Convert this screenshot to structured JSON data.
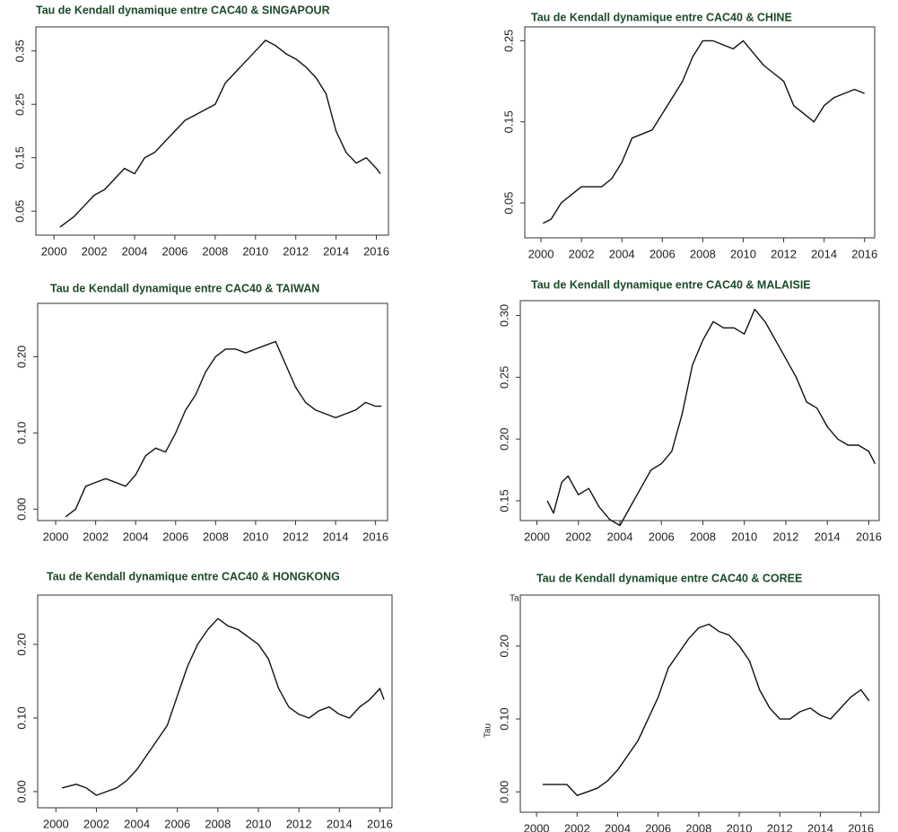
{
  "chart_data": [
    {
      "type": "line",
      "title": "Tau de Kendall dynamique entre CAC40 & SINGAPOUR",
      "color": "#111111",
      "x": [
        2000.3,
        2001,
        2001.5,
        2002,
        2002.5,
        2003,
        2003.5,
        2004,
        2004.5,
        2005,
        2005.5,
        2006,
        2006.5,
        2007,
        2007.5,
        2008,
        2008.5,
        2009,
        2009.5,
        2010,
        2010.5,
        2011,
        2011.5,
        2012,
        2012.5,
        2013,
        2013.5,
        2014,
        2014.5,
        2015,
        2015.5,
        2016,
        2016.2
      ],
      "values": [
        0.02,
        0.04,
        0.06,
        0.08,
        0.09,
        0.11,
        0.13,
        0.12,
        0.15,
        0.16,
        0.18,
        0.2,
        0.22,
        0.23,
        0.24,
        0.25,
        0.29,
        0.31,
        0.33,
        0.35,
        0.37,
        0.36,
        0.345,
        0.335,
        0.32,
        0.3,
        0.27,
        0.2,
        0.16,
        0.14,
        0.15,
        0.13,
        0.12
      ],
      "xlim": [
        1999.1,
        2016.6
      ],
      "xticks": [
        2000,
        2002,
        2004,
        2006,
        2008,
        2010,
        2012,
        2014,
        2016
      ],
      "ylim": [
        0.005,
        0.395
      ],
      "yticks": [
        0.05,
        0.15,
        0.25,
        0.35
      ]
    },
    {
      "type": "line",
      "title": "Tau de Kendall dynamique entre CAC40 & CHINE",
      "color": "#111111",
      "x": [
        2000.1,
        2000.5,
        2001,
        2001.5,
        2002,
        2003,
        2003.5,
        2004,
        2004.5,
        2005,
        2005.5,
        2006,
        2006.5,
        2007,
        2007.5,
        2008,
        2008.5,
        2009,
        2009.5,
        2010,
        2010.5,
        2011,
        2011.5,
        2012,
        2012.5,
        2013,
        2013.5,
        2014,
        2014.5,
        2015,
        2015.5,
        2016
      ],
      "values": [
        0.025,
        0.03,
        0.05,
        0.06,
        0.07,
        0.07,
        0.08,
        0.1,
        0.13,
        0.135,
        0.14,
        0.16,
        0.18,
        0.2,
        0.23,
        0.25,
        0.25,
        0.245,
        0.24,
        0.25,
        0.235,
        0.22,
        0.21,
        0.2,
        0.17,
        0.16,
        0.15,
        0.17,
        0.18,
        0.185,
        0.19,
        0.185
      ],
      "xlim": [
        1999.2,
        2016.5
      ],
      "xticks": [
        2000,
        2002,
        2004,
        2006,
        2008,
        2010,
        2012,
        2014,
        2016
      ],
      "ylim": [
        0.007,
        0.267
      ],
      "yticks": [
        0.05,
        0.15,
        0.25
      ]
    },
    {
      "type": "line",
      "title": "Tau de Kendall dynamique entre CAC40 & TAIWAN",
      "color": "#111111",
      "x": [
        2000.5,
        2001,
        2001.5,
        2002,
        2002.5,
        2003,
        2003.5,
        2004,
        2004.5,
        2005,
        2005.5,
        2006,
        2006.5,
        2007,
        2007.5,
        2008,
        2008.5,
        2009,
        2009.5,
        2010,
        2010.5,
        2011,
        2011.5,
        2012,
        2012.5,
        2013,
        2013.5,
        2014,
        2014.5,
        2015,
        2015.5,
        2016,
        2016.3
      ],
      "values": [
        -0.01,
        0.0,
        0.03,
        0.035,
        0.04,
        0.035,
        0.03,
        0.045,
        0.07,
        0.08,
        0.075,
        0.1,
        0.13,
        0.15,
        0.18,
        0.2,
        0.21,
        0.21,
        0.205,
        0.21,
        0.215,
        0.22,
        0.19,
        0.16,
        0.14,
        0.13,
        0.125,
        0.12,
        0.125,
        0.13,
        0.14,
        0.135,
        0.135
      ],
      "xlim": [
        1999.1,
        2016.6
      ],
      "xticks": [
        2000,
        2002,
        2004,
        2006,
        2008,
        2010,
        2012,
        2014,
        2016
      ],
      "ylim": [
        -0.015,
        0.27
      ],
      "yticks": [
        {
          "value": 0,
          "label": "0.00"
        },
        {
          "value": 0.1,
          "label": "0.10"
        },
        {
          "value": 0.2,
          "label": "0.20"
        }
      ]
    },
    {
      "type": "line",
      "title": "Tau de Kendall dynamique entre CAC40 & MALAISIE",
      "color": "#111111",
      "x": [
        2000.5,
        2000.8,
        2001.2,
        2001.5,
        2002,
        2002.5,
        2003,
        2003.5,
        2004,
        2004.5,
        2005,
        2005.5,
        2006,
        2006.5,
        2007,
        2007.5,
        2008,
        2008.5,
        2009,
        2009.5,
        2010,
        2010.5,
        2011,
        2011.5,
        2012,
        2012.5,
        2013,
        2013.5,
        2014,
        2014.5,
        2015,
        2015.5,
        2016,
        2016.3
      ],
      "values": [
        0.15,
        0.14,
        0.165,
        0.17,
        0.155,
        0.16,
        0.145,
        0.135,
        0.13,
        0.145,
        0.16,
        0.175,
        0.18,
        0.19,
        0.22,
        0.26,
        0.28,
        0.295,
        0.29,
        0.29,
        0.285,
        0.305,
        0.295,
        0.28,
        0.265,
        0.25,
        0.23,
        0.225,
        0.21,
        0.2,
        0.195,
        0.195,
        0.19,
        0.18
      ],
      "xlim": [
        1999.2,
        2016.5
      ],
      "xticks": [
        2000,
        2002,
        2004,
        2006,
        2008,
        2010,
        2012,
        2014,
        2016
      ],
      "ylim": [
        0.134,
        0.312
      ],
      "yticks": [
        0.15,
        {
          "value": 0.2,
          "label": "0.20"
        },
        0.25,
        {
          "value": 0.3,
          "label": "0.30"
        }
      ]
    },
    {
      "type": "line",
      "title": "Tau de Kendall dynamique entre CAC40 & HONGKONG",
      "color": "#111111",
      "x": [
        2000.3,
        2001,
        2001.5,
        2002,
        2002.5,
        2003,
        2003.5,
        2004,
        2004.5,
        2005,
        2005.5,
        2006,
        2006.5,
        2007,
        2007.5,
        2008,
        2008.5,
        2009,
        2009.5,
        2010,
        2010.5,
        2011,
        2011.5,
        2012,
        2012.5,
        2013,
        2013.5,
        2014,
        2014.5,
        2015,
        2015.5,
        2016,
        2016.2
      ],
      "values": [
        0.005,
        0.01,
        0.005,
        -0.005,
        0.0,
        0.005,
        0.015,
        0.03,
        0.05,
        0.07,
        0.09,
        0.13,
        0.17,
        0.2,
        0.22,
        0.235,
        0.225,
        0.22,
        0.21,
        0.2,
        0.18,
        0.14,
        0.115,
        0.105,
        0.1,
        0.11,
        0.115,
        0.105,
        0.1,
        0.115,
        0.125,
        0.14,
        0.125
      ],
      "xlim": [
        1999.1,
        2016.6
      ],
      "xticks": [
        2000,
        2002,
        2004,
        2006,
        2008,
        2010,
        2012,
        2014,
        2016
      ],
      "ylim": [
        -0.022,
        0.267
      ],
      "yticks": [
        {
          "value": 0,
          "label": "0.00"
        },
        {
          "value": 0.1,
          "label": "0.10"
        },
        {
          "value": 0.2,
          "label": "0.20"
        }
      ]
    },
    {
      "type": "line",
      "title": "Tau de Kendall dynamique entre CAC40 & COREE",
      "color": "#111111",
      "y_label": "Tau",
      "annotation": "Ta",
      "x": [
        2000.3,
        2001,
        2001.5,
        2002,
        2002.5,
        2003,
        2003.5,
        2004,
        2004.5,
        2005,
        2005.5,
        2006,
        2006.5,
        2007,
        2007.5,
        2008,
        2008.5,
        2009,
        2009.5,
        2010,
        2010.5,
        2011,
        2011.5,
        2012,
        2012.5,
        2013,
        2013.5,
        2014,
        2014.5,
        2015,
        2015.5,
        2016,
        2016.4
      ],
      "values": [
        0.01,
        0.01,
        0.01,
        -0.005,
        0.0,
        0.005,
        0.015,
        0.03,
        0.05,
        0.07,
        0.1,
        0.13,
        0.17,
        0.19,
        0.21,
        0.225,
        0.23,
        0.22,
        0.215,
        0.2,
        0.18,
        0.14,
        0.115,
        0.1,
        0.1,
        0.11,
        0.115,
        0.105,
        0.1,
        0.115,
        0.13,
        0.14,
        0.125
      ],
      "xlim": [
        1999.2,
        2016.9
      ],
      "xticks": [
        2000,
        2002,
        2004,
        2006,
        2008,
        2010,
        2012,
        2014,
        2016
      ],
      "ylim": [
        -0.028,
        0.27
      ],
      "yticks": [
        {
          "value": 0,
          "label": "0.00"
        },
        {
          "value": 0.1,
          "label": "0.10"
        },
        {
          "value": 0.2,
          "label": "0.20"
        }
      ]
    }
  ]
}
